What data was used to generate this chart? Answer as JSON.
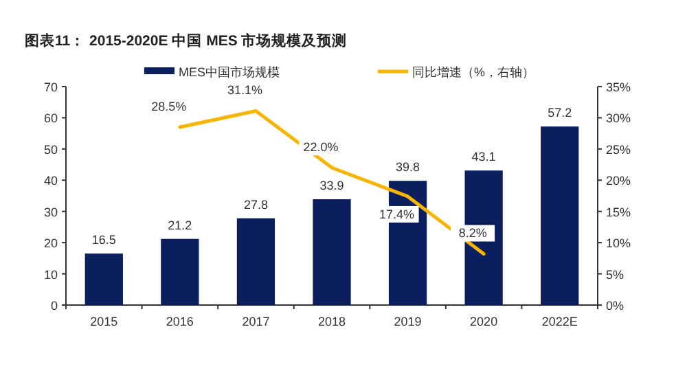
{
  "chart_data": {
    "type": "bar",
    "title": "图表11：  2015-2020E 中国 MES 市场规模及预测",
    "categories": [
      "2015",
      "2016",
      "2017",
      "2018",
      "2019",
      "2020",
      "2022E"
    ],
    "series": [
      {
        "name": "MES中国市场规模",
        "color": "#0b1f5e",
        "values": [
          16.5,
          21.2,
          27.8,
          33.9,
          39.8,
          43.1,
          57.2
        ],
        "value_labels": [
          "16.5",
          "21.2",
          "27.8",
          "33.9",
          "39.8",
          "43.1",
          "57.2"
        ]
      },
      {
        "name": "同比增速（%，右轴）",
        "type": "line",
        "axis": "y2",
        "color": "#f7b500",
        "values": [
          null,
          28.5,
          31.1,
          22.0,
          17.4,
          8.2,
          null
        ],
        "value_labels": [
          null,
          "28.5%",
          "31.1%",
          "22.0%",
          "17.4%",
          "8.2%",
          null
        ]
      }
    ],
    "ylim": [
      0,
      70
    ],
    "yticks": [
      0,
      10,
      20,
      30,
      40,
      50,
      60,
      70
    ],
    "y2lim": [
      0,
      35
    ],
    "y2ticks": [
      {
        "value": 0,
        "label": "0%"
      },
      {
        "value": 5,
        "label": "5%"
      },
      {
        "value": 10,
        "label": "10%"
      },
      {
        "value": 15,
        "label": "15%"
      },
      {
        "value": 20,
        "label": "20%"
      },
      {
        "value": 25,
        "label": "25%"
      },
      {
        "value": 30,
        "label": "30%"
      },
      {
        "value": 35,
        "label": "35%"
      }
    ],
    "legend": "top",
    "grid": false
  }
}
